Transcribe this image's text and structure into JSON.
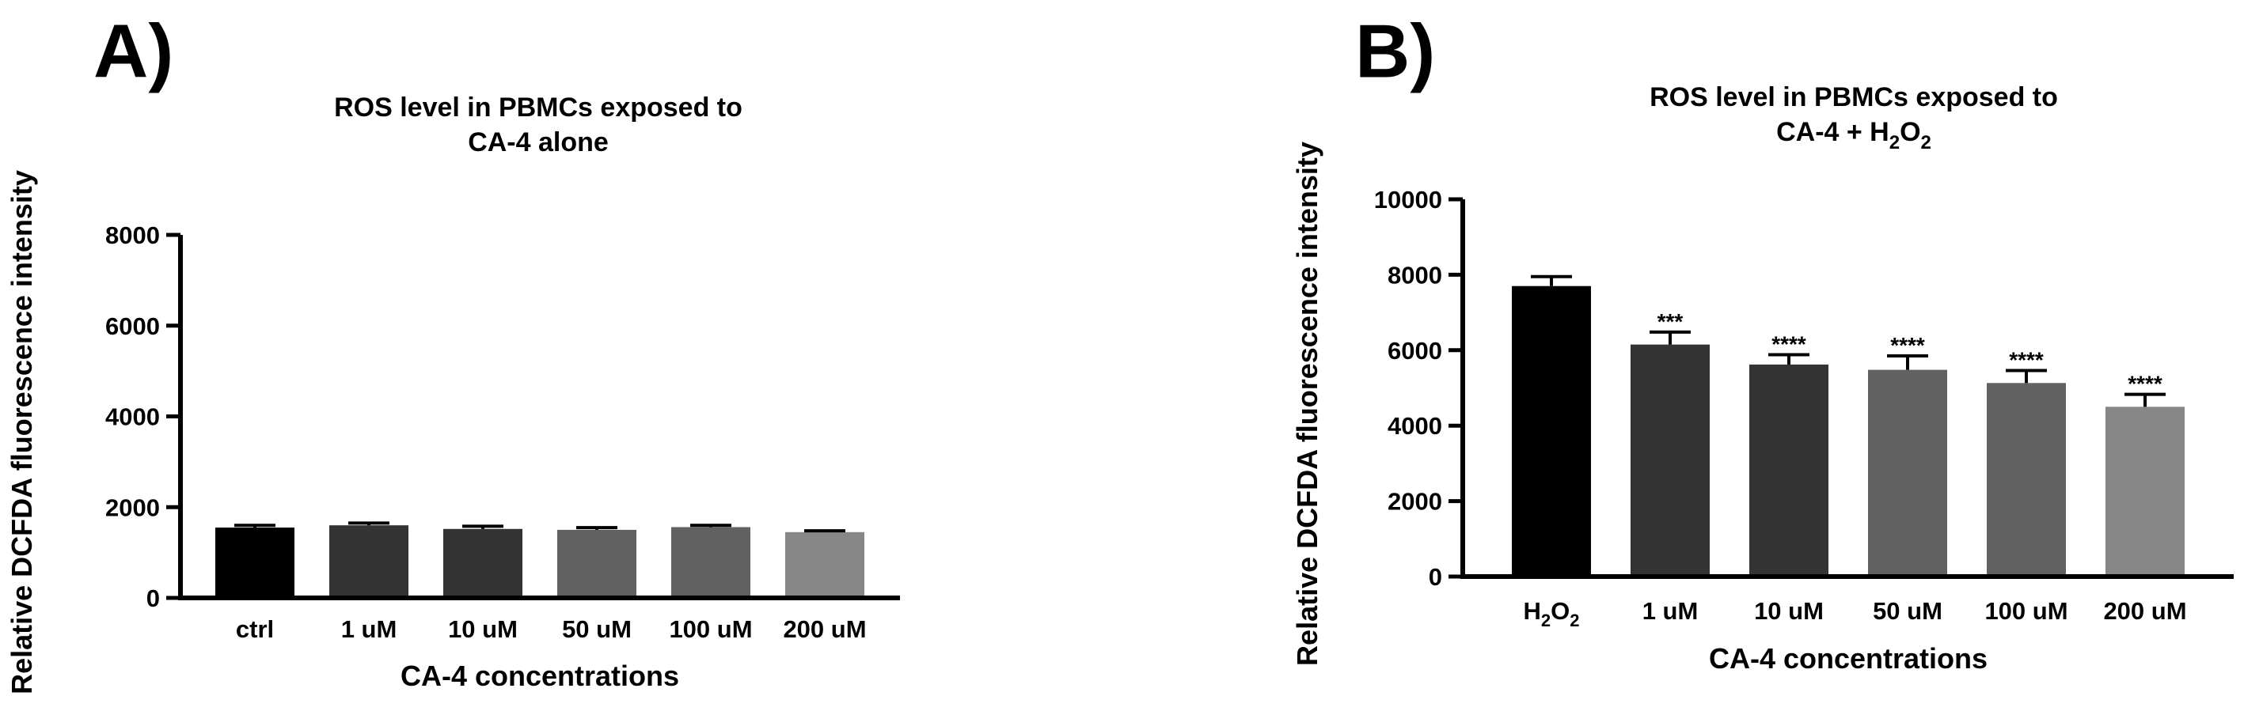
{
  "chart_data": [
    {
      "panel_label": "A)",
      "type": "bar",
      "title_lines": [
        [
          {
            "t": "ROS level in PBMCs exposed to"
          }
        ],
        [
          {
            "t": "CA-4 alone"
          }
        ]
      ],
      "xlabel": "CA-4 concentrations",
      "ylabel": "Relative DCFDA fluorescence intensity",
      "ylim": [
        0,
        8000
      ],
      "yticks": [
        0,
        2000,
        4000,
        6000,
        8000
      ],
      "categories": [
        [
          {
            "t": "ctrl"
          }
        ],
        [
          {
            "t": "1 uM"
          }
        ],
        [
          {
            "t": "10 uM"
          }
        ],
        [
          {
            "t": "50 uM"
          }
        ],
        [
          {
            "t": "100 uM"
          }
        ],
        [
          {
            "t": "200 uM"
          }
        ]
      ],
      "values": [
        1550,
        1600,
        1520,
        1500,
        1560,
        1450
      ],
      "errors": [
        50,
        50,
        60,
        50,
        40,
        30
      ],
      "significance": [
        "",
        "",
        "",
        "",
        "",
        ""
      ],
      "colors": [
        "#000000",
        "#333333",
        "#333333",
        "#616161",
        "#616161",
        "#878787"
      ]
    },
    {
      "panel_label": "B)",
      "type": "bar",
      "title_lines": [
        [
          {
            "t": "ROS level in PBMCs exposed to"
          }
        ],
        [
          {
            "t": "CA-4  + H"
          },
          {
            "t": "2",
            "sub": true
          },
          {
            "t": "O"
          },
          {
            "t": "2",
            "sub": true
          }
        ]
      ],
      "xlabel": "CA-4 concentrations",
      "ylabel": "Relative DCFDA fluorescence intensity",
      "ylim": [
        0,
        10000
      ],
      "yticks": [
        0,
        2000,
        4000,
        6000,
        8000,
        10000
      ],
      "categories": [
        [
          {
            "t": "H"
          },
          {
            "t": "2",
            "sub": true
          },
          {
            "t": "O"
          },
          {
            "t": "2",
            "sub": true
          }
        ],
        [
          {
            "t": "1 uM"
          }
        ],
        [
          {
            "t": "10 uM"
          }
        ],
        [
          {
            "t": "50 uM"
          }
        ],
        [
          {
            "t": "100 uM"
          }
        ],
        [
          {
            "t": "200 uM"
          }
        ]
      ],
      "values": [
        7700,
        6150,
        5620,
        5480,
        5130,
        4500
      ],
      "errors": [
        250,
        330,
        260,
        370,
        330,
        330
      ],
      "significance": [
        "",
        "***",
        "****",
        "****",
        "****",
        "****"
      ],
      "colors": [
        "#000000",
        "#333333",
        "#333333",
        "#616161",
        "#616161",
        "#878787"
      ]
    }
  ]
}
